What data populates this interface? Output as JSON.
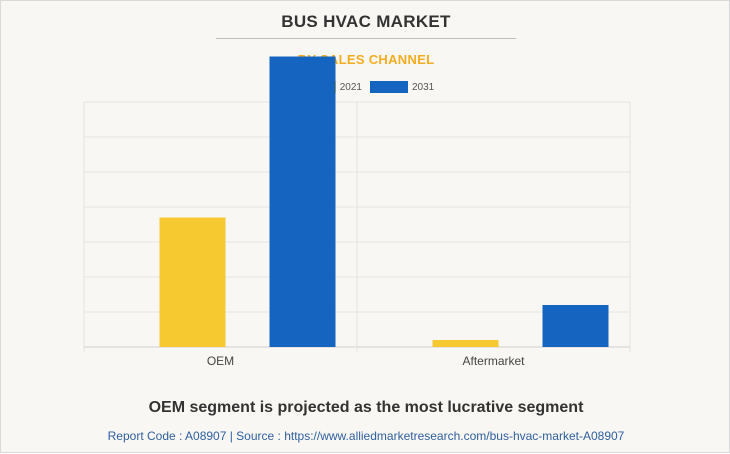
{
  "chart_data": {
    "type": "bar",
    "title": "BUS HVAC MARKET",
    "subtitle": "BY SALES CHANNEL",
    "categories": [
      "OEM",
      "Aftermarket"
    ],
    "series": [
      {
        "name": "2021",
        "color": "#f6c930",
        "values": [
          3.7,
          0.2
        ]
      },
      {
        "name": "2031",
        "color": "#1565c0",
        "values": [
          8.3,
          1.2
        ]
      }
    ],
    "ylim": [
      0,
      10
    ],
    "yticks": [
      0,
      1,
      2,
      3,
      4,
      5,
      6,
      7
    ],
    "legend": "top-center",
    "grid": true
  },
  "footer": {
    "caption": "OEM segment is projected as the most lucrative segment",
    "source": "Report Code : A08907  |  Source : https://www.alliedmarketresearch.com/bus-hvac-market-A08907"
  }
}
